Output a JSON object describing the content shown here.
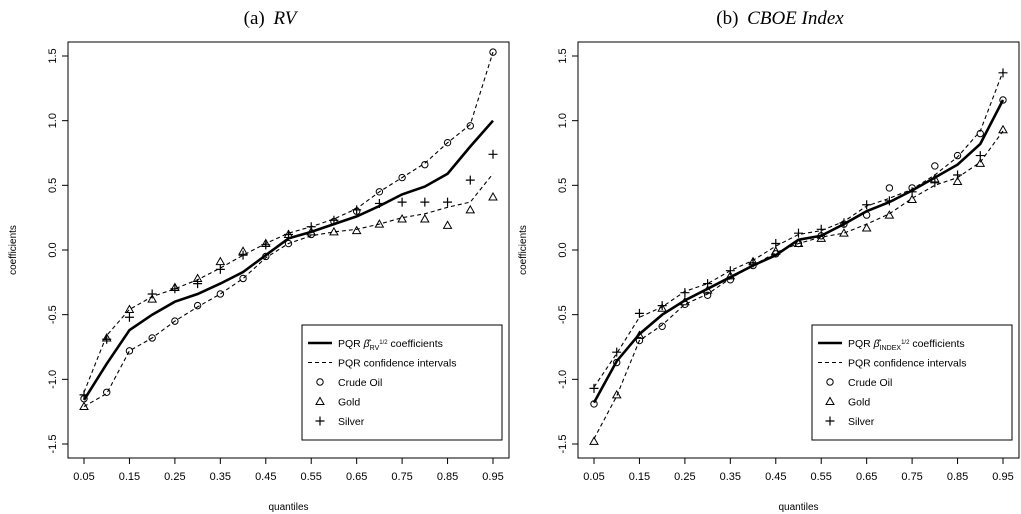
{
  "panels": [
    {
      "title_prefix": "(a)",
      "title_italic": "RV",
      "xlabel": "quantiles",
      "ylabel": "coefficients",
      "legend": {
        "coef_label": "PQR",
        "coef_subscript": "RV",
        "coef_superscript": "1/2",
        "coef_suffix": "coefficients",
        "ci_label": "PQR confidence intervals",
        "oil_label": "Crude Oil",
        "gold_label": "Gold",
        "silver_label": "Silver"
      }
    },
    {
      "title_prefix": "(b)",
      "title_italic": "CBOE Index",
      "xlabel": "quantiles",
      "ylabel": "coefficients",
      "legend": {
        "coef_label": "PQR",
        "coef_subscript": "INDEX",
        "coef_superscript": "1/2",
        "coef_suffix": "coefficients",
        "ci_label": "PQR confidence intervals",
        "oil_label": "Crude Oil",
        "gold_label": "Gold",
        "silver_label": "Silver"
      }
    }
  ],
  "chart_data": [
    {
      "type": "line",
      "title": "(a) RV",
      "xlabel": "quantiles",
      "ylabel": "coefficients",
      "xlim": [
        0.05,
        0.95
      ],
      "ylim": [
        -1.5,
        1.5
      ],
      "x_ticks": [
        "0.05",
        "0.15",
        "0.25",
        "0.35",
        "0.45",
        "0.55",
        "0.65",
        "0.75",
        "0.85",
        "0.95"
      ],
      "y_ticks": [
        "-1.5",
        "-1.0",
        "-0.5",
        "0.0",
        "0.5",
        "1.0",
        "1.5"
      ],
      "legend_position": "bottom-right",
      "x": [
        0.05,
        0.1,
        0.15,
        0.2,
        0.25,
        0.3,
        0.35,
        0.4,
        0.45,
        0.5,
        0.55,
        0.6,
        0.65,
        0.7,
        0.75,
        0.8,
        0.85,
        0.9,
        0.95
      ],
      "series": [
        {
          "name": "PQR coefficients",
          "style": "solid",
          "values": [
            -1.16,
            -0.88,
            -0.62,
            -0.5,
            -0.4,
            -0.34,
            -0.26,
            -0.17,
            -0.04,
            0.09,
            0.14,
            0.2,
            0.26,
            0.34,
            0.43,
            0.49,
            0.59,
            0.8,
            1.0
          ]
        },
        {
          "name": "PQR confidence intervals (upper)",
          "style": "dashed",
          "values": [
            -1.1,
            -0.66,
            -0.46,
            -0.36,
            -0.3,
            -0.23,
            -0.14,
            -0.04,
            0.05,
            0.13,
            0.18,
            0.24,
            0.32,
            0.45,
            0.56,
            0.67,
            0.83,
            0.97,
            1.53
          ]
        },
        {
          "name": "PQR confidence intervals (lower)",
          "style": "dashed",
          "values": [
            -1.21,
            -1.11,
            -0.78,
            -0.68,
            -0.55,
            -0.44,
            -0.34,
            -0.22,
            -0.06,
            0.05,
            0.11,
            0.14,
            0.16,
            0.2,
            0.25,
            0.28,
            0.33,
            0.37,
            0.59
          ]
        },
        {
          "name": "Crude Oil",
          "marker": "circle",
          "values": [
            -1.15,
            -1.1,
            -0.78,
            -0.68,
            -0.55,
            -0.43,
            -0.34,
            -0.22,
            -0.05,
            0.05,
            0.12,
            0.22,
            0.3,
            0.45,
            0.56,
            0.66,
            0.83,
            0.96,
            1.53
          ]
        },
        {
          "name": "Gold",
          "marker": "triangle",
          "values": [
            -1.21,
            -0.68,
            -0.46,
            -0.38,
            -0.29,
            -0.22,
            -0.09,
            -0.01,
            0.05,
            0.12,
            0.14,
            0.14,
            0.15,
            0.2,
            0.24,
            0.24,
            0.19,
            0.31,
            0.41
          ]
        },
        {
          "name": "Silver",
          "marker": "plus",
          "values": [
            -1.12,
            -0.69,
            -0.52,
            -0.34,
            -0.3,
            -0.26,
            -0.15,
            -0.04,
            0.04,
            0.12,
            0.18,
            0.23,
            0.31,
            0.36,
            0.37,
            0.37,
            0.37,
            0.54,
            0.74
          ]
        }
      ]
    },
    {
      "type": "line",
      "title": "(b) CBOE Index",
      "xlabel": "quantiles",
      "ylabel": "coefficients",
      "xlim": [
        0.05,
        0.95
      ],
      "ylim": [
        -1.5,
        1.5
      ],
      "x_ticks": [
        "0.05",
        "0.15",
        "0.25",
        "0.35",
        "0.45",
        "0.55",
        "0.65",
        "0.75",
        "0.85",
        "0.95"
      ],
      "y_ticks": [
        "-1.5",
        "-1.0",
        "-0.5",
        "0.0",
        "0.5",
        "1.0",
        "1.5"
      ],
      "legend_position": "bottom-right",
      "x": [
        0.05,
        0.1,
        0.15,
        0.2,
        0.25,
        0.3,
        0.35,
        0.4,
        0.45,
        0.5,
        0.55,
        0.6,
        0.65,
        0.7,
        0.75,
        0.8,
        0.85,
        0.9,
        0.95
      ],
      "series": [
        {
          "name": "PQR coefficients",
          "style": "solid",
          "values": [
            -1.18,
            -0.86,
            -0.65,
            -0.5,
            -0.39,
            -0.3,
            -0.21,
            -0.12,
            -0.04,
            0.08,
            0.11,
            0.2,
            0.3,
            0.37,
            0.46,
            0.56,
            0.66,
            0.82,
            1.16
          ]
        },
        {
          "name": "PQR confidence intervals (upper)",
          "style": "dashed",
          "values": [
            -1.06,
            -0.8,
            -0.52,
            -0.44,
            -0.32,
            -0.26,
            -0.16,
            -0.08,
            0.03,
            0.12,
            0.15,
            0.22,
            0.34,
            0.4,
            0.47,
            0.58,
            0.72,
            0.92,
            1.38
          ]
        },
        {
          "name": "PQR confidence intervals (lower)",
          "style": "dashed",
          "values": [
            -1.46,
            -1.13,
            -0.7,
            -0.58,
            -0.42,
            -0.34,
            -0.22,
            -0.12,
            -0.02,
            0.05,
            0.1,
            0.13,
            0.2,
            0.28,
            0.4,
            0.5,
            0.56,
            0.68,
            0.92
          ]
        },
        {
          "name": "Crude Oil",
          "marker": "circle",
          "values": [
            -1.19,
            -0.87,
            -0.7,
            -0.59,
            -0.42,
            -0.35,
            -0.23,
            -0.12,
            -0.03,
            0.05,
            0.11,
            0.2,
            0.27,
            0.48,
            0.48,
            0.65,
            0.73,
            0.9,
            1.16
          ]
        },
        {
          "name": "Gold",
          "marker": "triangle",
          "values": [
            -1.48,
            -1.12,
            -0.66,
            -0.45,
            -0.4,
            -0.31,
            -0.2,
            -0.09,
            -0.01,
            0.05,
            0.09,
            0.13,
            0.17,
            0.27,
            0.39,
            0.55,
            0.53,
            0.67,
            0.93
          ]
        },
        {
          "name": "Silver",
          "marker": "plus",
          "values": [
            -1.07,
            -0.79,
            -0.49,
            -0.43,
            -0.33,
            -0.26,
            -0.16,
            -0.1,
            0.05,
            0.13,
            0.16,
            0.21,
            0.35,
            0.38,
            0.45,
            0.52,
            0.58,
            0.73,
            1.37
          ]
        }
      ]
    }
  ]
}
